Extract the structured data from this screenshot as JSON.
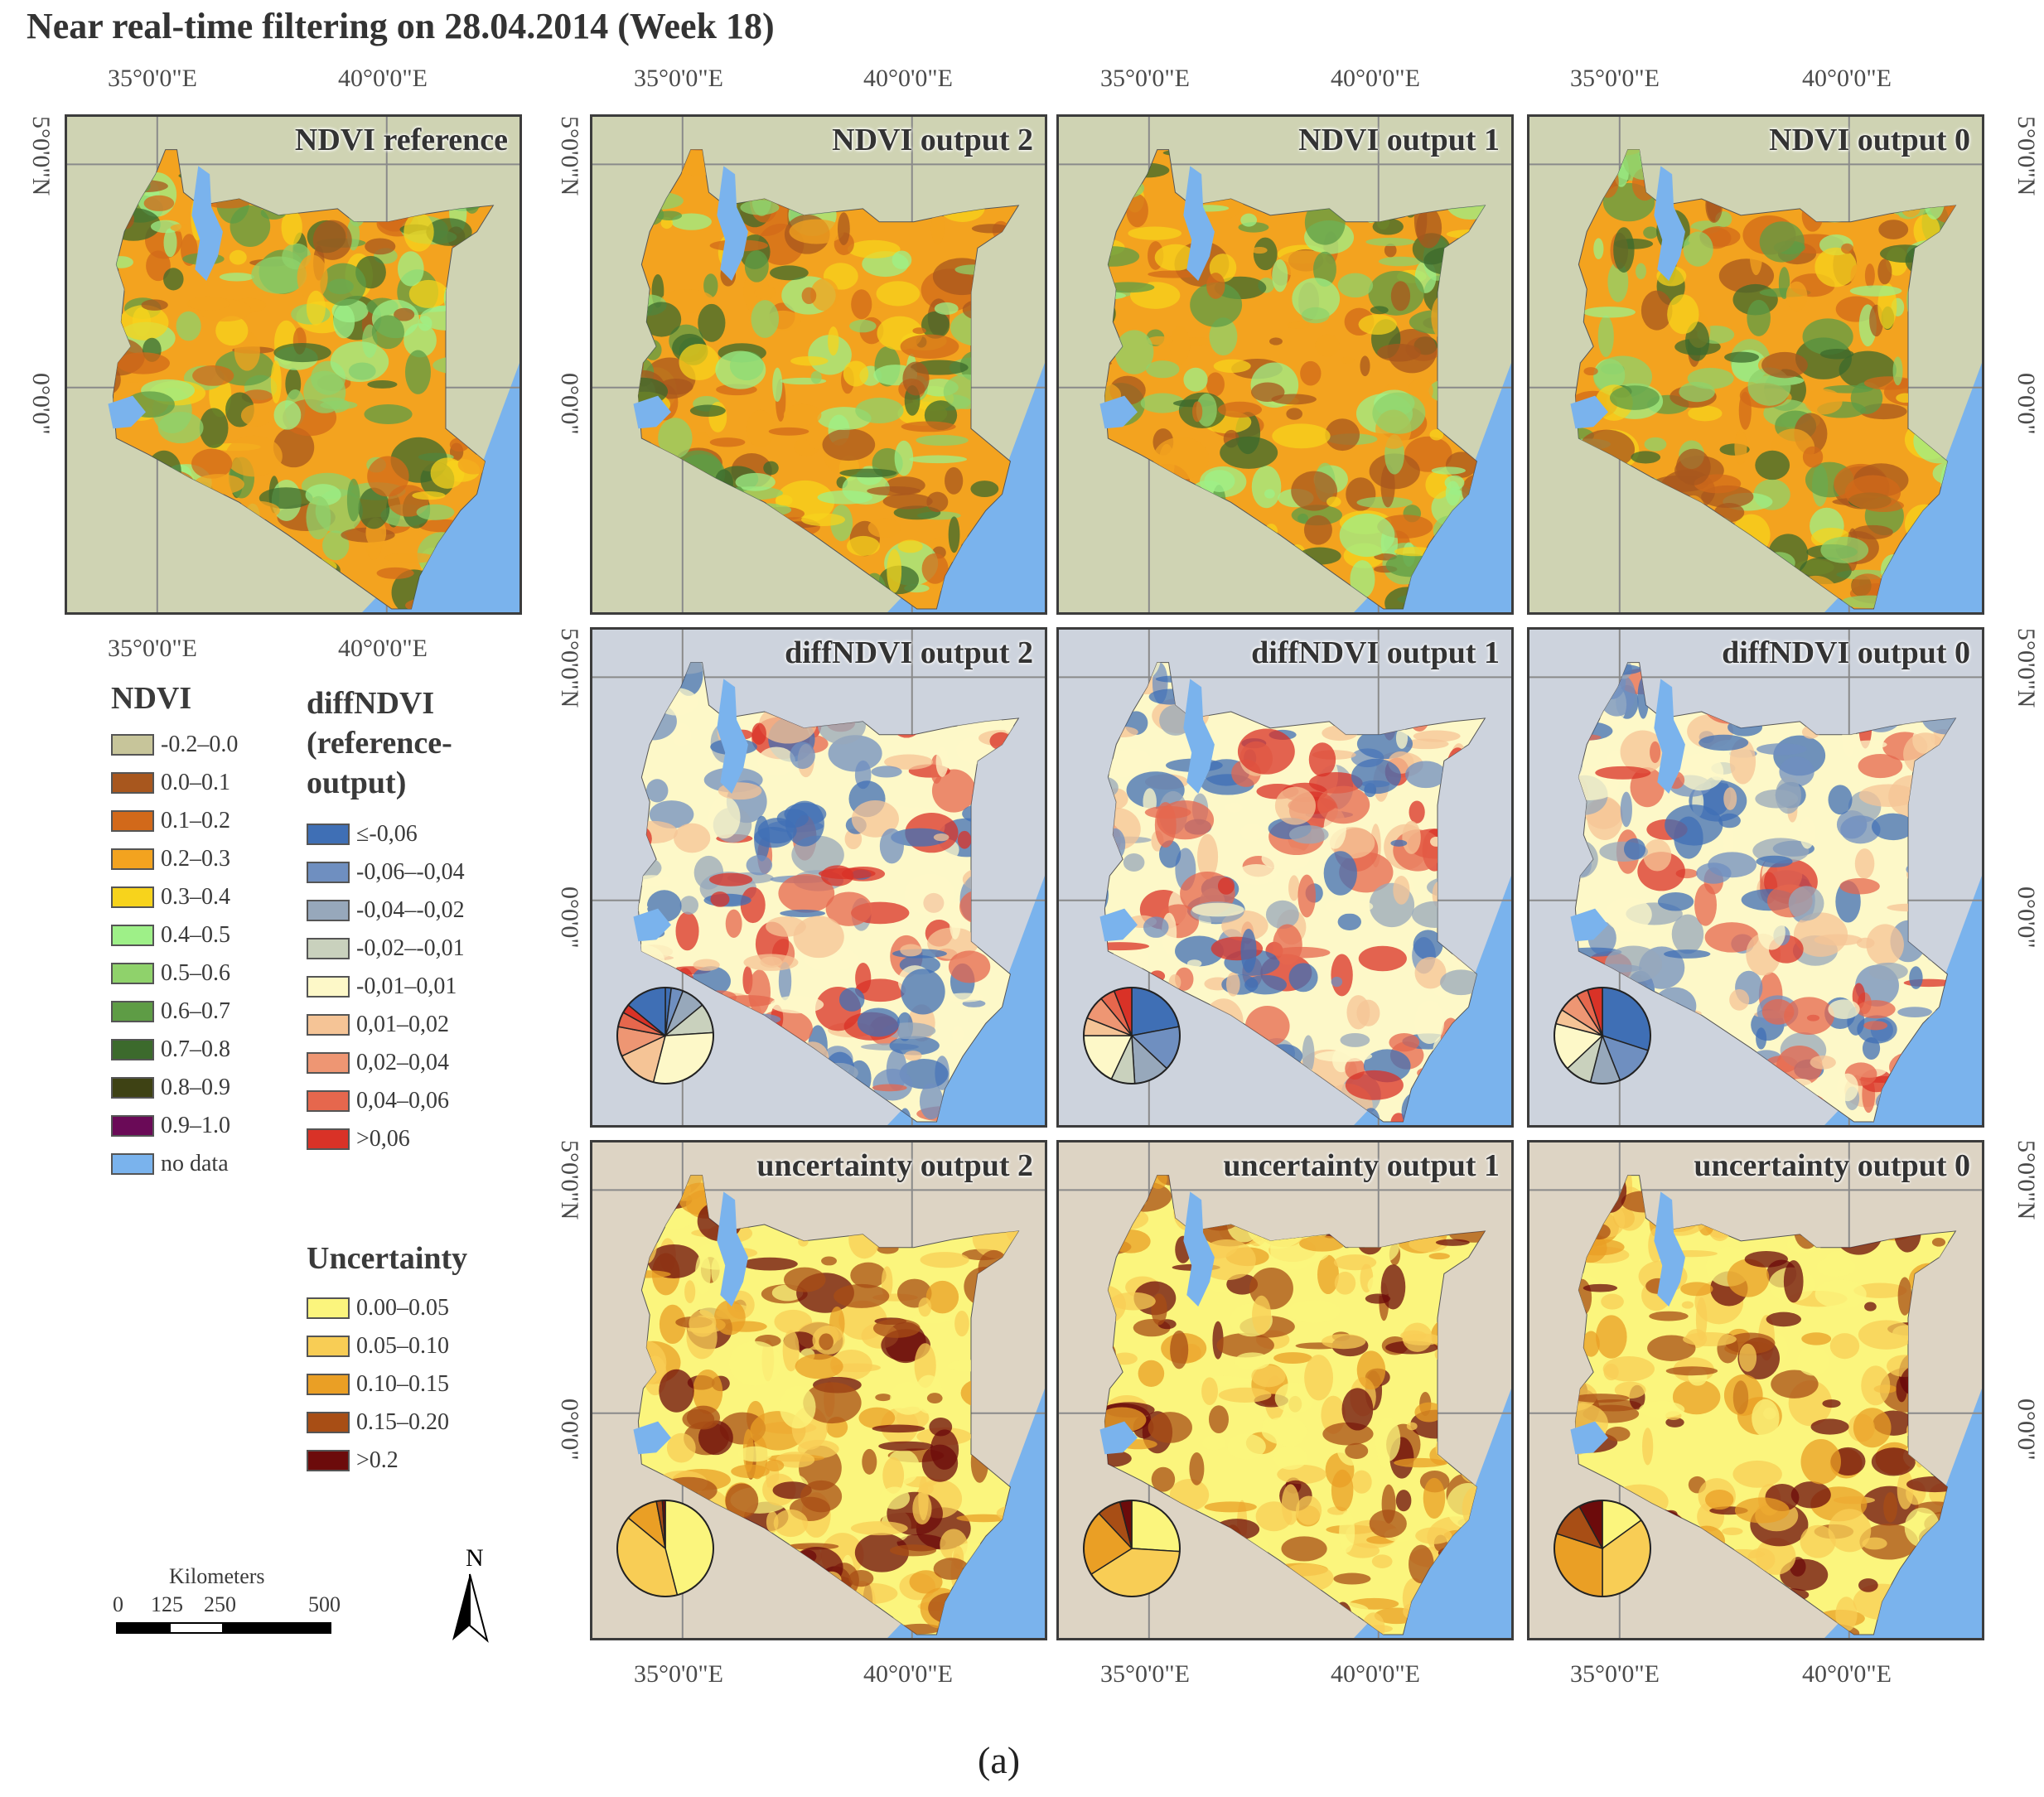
{
  "title": "Near real-time filtering on 28.04.2014 (Week 18)",
  "caption": "(a)",
  "axes": {
    "lon_35": "35°0'0\"E",
    "lon_40": "40°0'0\"E",
    "lat_5": "5°0'0\"N",
    "lat_0": "0°0'0\""
  },
  "panels": {
    "ndvi_reference": "NDVI reference",
    "ndvi_output_2": "NDVI output 2",
    "ndvi_output_1": "NDVI output 1",
    "ndvi_output_0": "NDVI output 0",
    "diff_output_2": "diffNDVI output 2",
    "diff_output_1": "diffNDVI output 1",
    "diff_output_0": "diffNDVI output 0",
    "unc_output_2": "uncertainty output 2",
    "unc_output_1": "uncertainty output 1",
    "unc_output_0": "uncertainty output 0"
  },
  "legend_ndvi": {
    "title": "NDVI",
    "items": [
      {
        "label": "-0.2–0.0",
        "color": "#c7c59a"
      },
      {
        "label": "0.0–0.1",
        "color": "#a8571e"
      },
      {
        "label": "0.1–0.2",
        "color": "#d2691a"
      },
      {
        "label": "0.2–0.3",
        "color": "#f3a31f"
      },
      {
        "label": "0.3–0.4",
        "color": "#f7d31c"
      },
      {
        "label": "0.4–0.5",
        "color": "#9ef088"
      },
      {
        "label": "0.5–0.6",
        "color": "#8fd26b"
      },
      {
        "label": "0.6–0.7",
        "color": "#5e9c45"
      },
      {
        "label": "0.7–0.8",
        "color": "#3c6a2c"
      },
      {
        "label": "0.8–0.9",
        "color": "#3e4214"
      },
      {
        "label": "0.9–1.0",
        "color": "#6a0a57"
      },
      {
        "label": "no data",
        "color": "#7ab3ed"
      }
    ]
  },
  "legend_diff": {
    "title_line1": "diffNDVI",
    "title_line2": "(reference-",
    "title_line3": "output)",
    "items": [
      {
        "label": "≤-0,06",
        "color": "#3f6fb5"
      },
      {
        "label": "-0,06–-0,04",
        "color": "#6f8fc0"
      },
      {
        "label": "-0,04–-0,02",
        "color": "#97a8bb"
      },
      {
        "label": "-0,02–-0,01",
        "color": "#c9d1bd"
      },
      {
        "label": "-0,01–0,01",
        "color": "#fdf8c8"
      },
      {
        "label": "0,01–0,02",
        "color": "#f5c496"
      },
      {
        "label": "0,02–0,04",
        "color": "#ee9673"
      },
      {
        "label": "0,04–0,06",
        "color": "#e6674d"
      },
      {
        "label": ">0,06",
        "color": "#d93227"
      }
    ]
  },
  "legend_unc": {
    "title": "Uncertainty",
    "items": [
      {
        "label": "0.00–0.05",
        "color": "#fbf57d"
      },
      {
        "label": "0.05–0.10",
        "color": "#f8cd55"
      },
      {
        "label": "0.10–0.15",
        "color": "#ea9f25"
      },
      {
        "label": "0.15–0.20",
        "color": "#a84e15"
      },
      {
        "label": ">0.2",
        "color": "#6c0b0b"
      }
    ]
  },
  "scalebar": {
    "title": "Kilometers",
    "n0": "0",
    "n125": "125",
    "n250": "250",
    "n500": "500"
  },
  "north_label": "N",
  "pies": {
    "diff_2": [
      0.02,
      0.04,
      0.08,
      0.1,
      0.3,
      0.14,
      0.1,
      0.05,
      0.03,
      0.14
    ],
    "diff_1": [
      0.22,
      0.15,
      0.12,
      0.08,
      0.18,
      0.06,
      0.08,
      0.05,
      0.06
    ],
    "diff_0": [
      0.3,
      0.14,
      0.1,
      0.09,
      0.16,
      0.05,
      0.07,
      0.04,
      0.05
    ],
    "unc_2": [
      0.46,
      0.4,
      0.11,
      0.02,
      0.01
    ],
    "unc_1": [
      0.26,
      0.4,
      0.22,
      0.08,
      0.04
    ],
    "unc_0": [
      0.15,
      0.35,
      0.3,
      0.12,
      0.08
    ]
  }
}
